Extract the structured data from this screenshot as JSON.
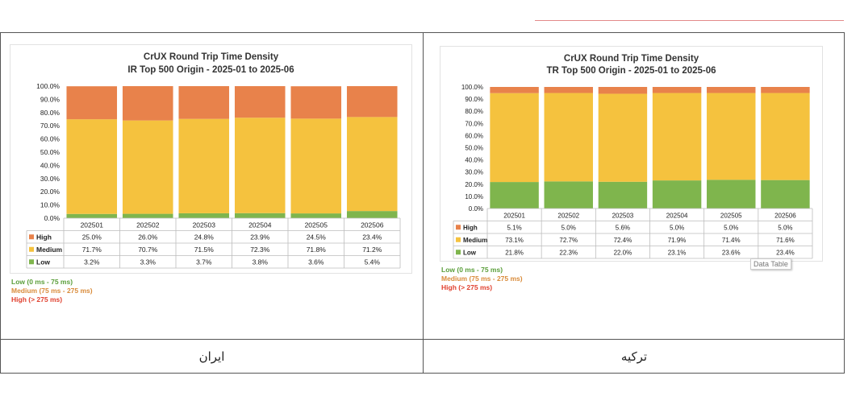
{
  "colors": {
    "high": "#e8824b",
    "medium": "#f5c23e",
    "low": "#7fb54d",
    "low_text": "#5a9e3a",
    "medium_text": "#d98b3a",
    "high_text": "#e0402e"
  },
  "chart_data": [
    {
      "type": "bar",
      "stacked": "percent",
      "title": "CrUX Round Trip Time Density",
      "subtitle": "IR Top 500 Origin - 2025-01 to 2025-06",
      "categories": [
        "202501",
        "202502",
        "202503",
        "202504",
        "202505",
        "202506"
      ],
      "ylim": [
        0,
        100
      ],
      "yticks": [
        "0.0%",
        "10.0%",
        "20.0%",
        "30.0%",
        "40.0%",
        "50.0%",
        "60.0%",
        "70.0%",
        "80.0%",
        "90.0%",
        "100.0%"
      ],
      "series": [
        {
          "name": "High",
          "values": [
            25.0,
            26.0,
            24.8,
            23.9,
            24.5,
            23.4
          ],
          "labels": [
            "25.0%",
            "26.0%",
            "24.8%",
            "23.9%",
            "24.5%",
            "23.4%"
          ]
        },
        {
          "name": "Medium",
          "values": [
            71.7,
            70.7,
            71.5,
            72.3,
            71.8,
            71.2
          ],
          "labels": [
            "71.7%",
            "70.7%",
            "71.5%",
            "72.3%",
            "71.8%",
            "71.2%"
          ]
        },
        {
          "name": "Low",
          "values": [
            3.2,
            3.3,
            3.7,
            3.8,
            3.6,
            5.4
          ],
          "labels": [
            "3.2%",
            "3.3%",
            "3.7%",
            "3.8%",
            "3.6%",
            "5.4%"
          ]
        }
      ],
      "data_table": true
    },
    {
      "type": "bar",
      "stacked": "percent",
      "title": "CrUX Round Trip Time Density",
      "subtitle": "TR Top 500 Origin - 2025-01 to 2025-06",
      "categories": [
        "202501",
        "202502",
        "202503",
        "202504",
        "202505",
        "202506"
      ],
      "ylim": [
        0,
        100
      ],
      "yticks": [
        "0.0%",
        "10.0%",
        "20.0%",
        "30.0%",
        "40.0%",
        "50.0%",
        "60.0%",
        "70.0%",
        "80.0%",
        "90.0%",
        "100.0%"
      ],
      "series": [
        {
          "name": "High",
          "values": [
            5.1,
            5.0,
            5.6,
            5.0,
            5.0,
            5.0
          ],
          "labels": [
            "5.1%",
            "5.0%",
            "5.6%",
            "5.0%",
            "5.0%",
            "5.0%"
          ]
        },
        {
          "name": "Medium",
          "values": [
            73.1,
            72.7,
            72.4,
            71.9,
            71.4,
            71.6
          ],
          "labels": [
            "73.1%",
            "72.7%",
            "72.4%",
            "71.9%",
            "71.4%",
            "71.6%"
          ]
        },
        {
          "name": "Low",
          "values": [
            21.8,
            22.3,
            22.0,
            23.1,
            23.6,
            23.4
          ],
          "labels": [
            "21.8%",
            "22.3%",
            "22.0%",
            "23.1%",
            "23.6%",
            "23.4%"
          ]
        }
      ],
      "data_table": true
    }
  ],
  "legend_notes": {
    "low": "Low (0 ms - 75 ms)",
    "medium": "Medium (75 ms - 275 ms)",
    "high": "High (> 275 ms)"
  },
  "tooltip": "Data Table",
  "captions": {
    "left": "ایران",
    "right": "ترکیه"
  }
}
